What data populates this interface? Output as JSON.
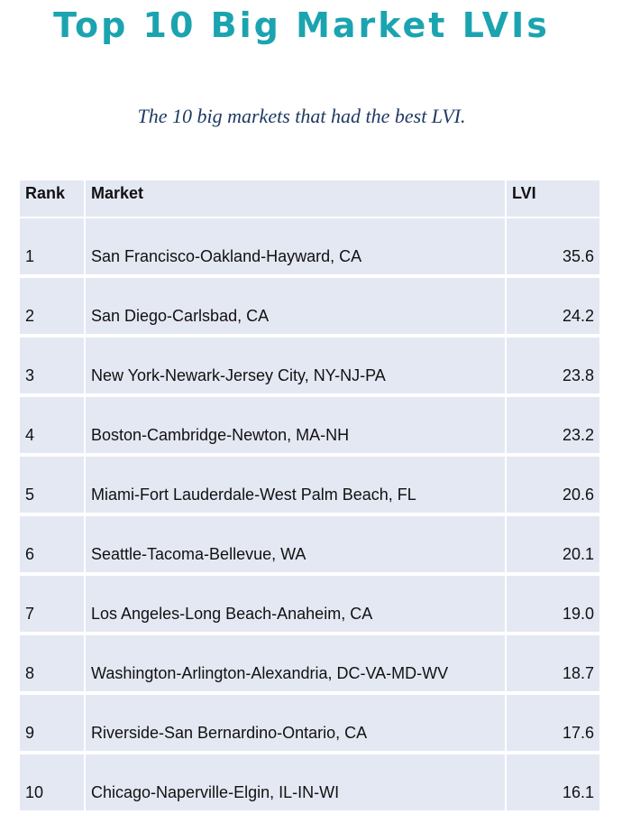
{
  "title": "Top 10 Big Market LVIs",
  "subtitle": "The 10 big markets that had the best LVI.",
  "table": {
    "headers": {
      "rank": "Rank",
      "market": "Market",
      "lvi": "LVI"
    },
    "rows": [
      {
        "rank": "1",
        "market": "San Francisco-Oakland-Hayward, CA",
        "lvi": "35.6"
      },
      {
        "rank": "2",
        "market": "San Diego-Carlsbad, CA",
        "lvi": "24.2"
      },
      {
        "rank": "3",
        "market": "New York-Newark-Jersey City, NY-NJ-PA",
        "lvi": "23.8"
      },
      {
        "rank": "4",
        "market": "Boston-Cambridge-Newton, MA-NH",
        "lvi": "23.2"
      },
      {
        "rank": "5",
        "market": "Miami-Fort Lauderdale-West Palm Beach, FL",
        "lvi": "20.6"
      },
      {
        "rank": "6",
        "market": "Seattle-Tacoma-Bellevue, WA",
        "lvi": "20.1"
      },
      {
        "rank": "7",
        "market": "Los Angeles-Long Beach-Anaheim, CA",
        "lvi": "19.0"
      },
      {
        "rank": "8",
        "market": "Washington-Arlington-Alexandria, DC-VA-MD-WV",
        "lvi": "18.7"
      },
      {
        "rank": "9",
        "market": "Riverside-San Bernardino-Ontario, CA",
        "lvi": "17.6"
      },
      {
        "rank": "10",
        "market": "Chicago-Naperville-Elgin, IL-IN-WI",
        "lvi": "16.1"
      }
    ]
  },
  "colors": {
    "title": "#1ba4b0",
    "subtitle": "#1f3a63",
    "table_background": "#e4e8f3"
  }
}
